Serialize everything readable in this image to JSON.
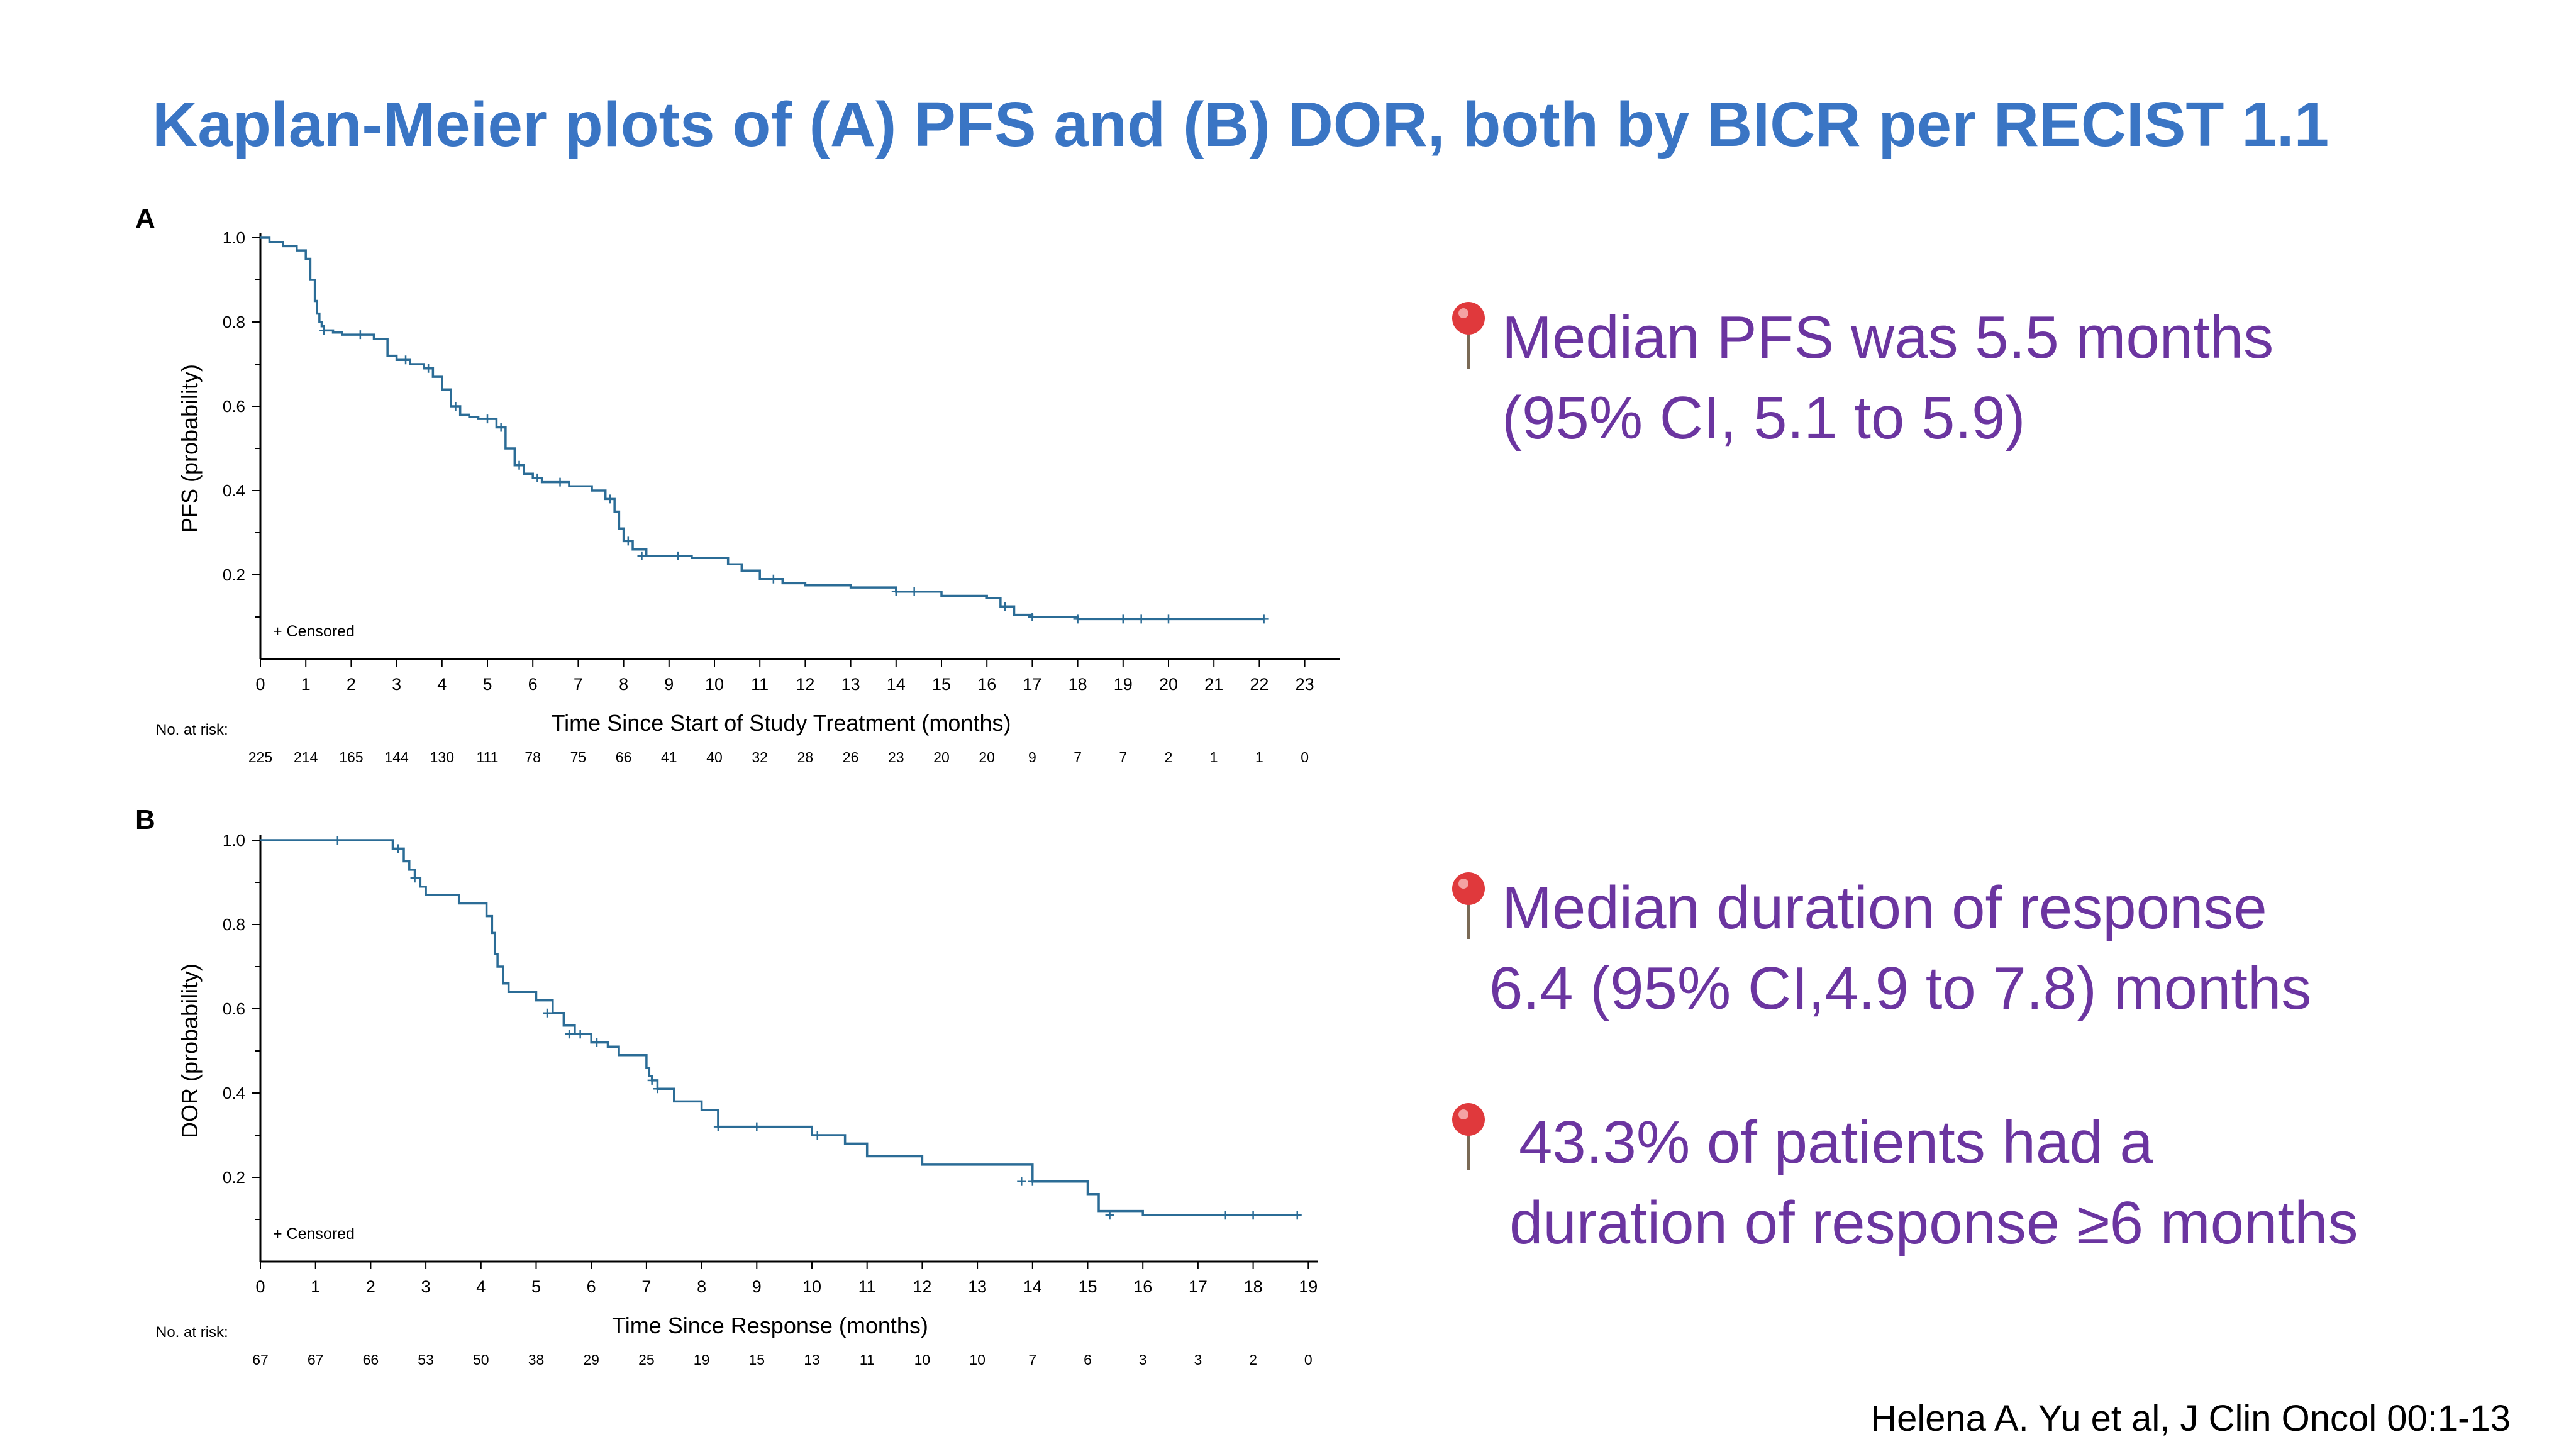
{
  "title": "Kaplan-Meier plots of (A) PFS and (B) DOR, both by BICR per RECIST 1.1",
  "colors": {
    "title": "#3A75C4",
    "bullet_text": "#6B35A0",
    "curve": "#2B6C96",
    "pin_head": "#E0393C"
  },
  "icons": {
    "bullet_marker": "pushpin-icon"
  },
  "chart_data": [
    {
      "type": "line",
      "subtype": "kaplan-meier",
      "panel": "A",
      "xlabel": "Time Since Start of Study Treatment (months)",
      "ylabel": "PFS (probability)",
      "xlim": [
        0,
        23
      ],
      "ylim": [
        0,
        1
      ],
      "x_ticks": [
        0,
        1,
        2,
        3,
        4,
        5,
        6,
        7,
        8,
        9,
        10,
        11,
        12,
        13,
        14,
        15,
        16,
        17,
        18,
        19,
        20,
        21,
        22,
        23
      ],
      "y_ticks": [
        0.2,
        0.4,
        0.6,
        0.8,
        1.0
      ],
      "y_tick_labels": [
        "0.2",
        "0.4",
        "0.6",
        "0.8",
        "1.0"
      ],
      "legend": "+ Censored",
      "risk_table_label": "No. at risk:",
      "number_at_risk": [
        "225",
        "214",
        "165",
        "144",
        "130",
        "111",
        "78",
        "75",
        "66",
        "41",
        "40",
        "32",
        "28",
        "26",
        "23",
        "20",
        "20",
        "9",
        "7",
        "7",
        "2",
        "1",
        "1",
        "0"
      ],
      "series": [
        {
          "x": [
            0,
            0.2,
            0.5,
            0.8,
            1.0,
            1.1,
            1.2,
            1.25,
            1.3,
            1.35,
            1.4,
            1.5,
            1.6,
            1.8,
            2.0,
            2.5,
            2.8,
            3.0,
            3.3,
            3.6,
            3.8,
            4.0,
            4.2,
            4.4,
            4.6,
            4.8,
            5.0,
            5.2,
            5.4,
            5.6,
            5.8,
            6.0,
            6.2,
            6.5,
            6.8,
            7.0,
            7.3,
            7.6,
            7.8,
            7.9,
            8.0,
            8.2,
            8.5,
            9.0,
            9.5,
            10.0,
            10.3,
            10.6,
            11.0,
            11.5,
            12.0,
            13.0,
            14.0,
            15.0,
            16.0,
            16.3,
            16.6,
            17.0,
            18.0,
            19.0,
            20.0,
            21.0,
            22.0,
            22.1
          ],
          "y": [
            1.0,
            0.99,
            0.98,
            0.97,
            0.95,
            0.9,
            0.85,
            0.82,
            0.8,
            0.79,
            0.78,
            0.78,
            0.775,
            0.77,
            0.77,
            0.76,
            0.72,
            0.71,
            0.7,
            0.69,
            0.67,
            0.64,
            0.6,
            0.58,
            0.575,
            0.57,
            0.57,
            0.55,
            0.5,
            0.46,
            0.44,
            0.43,
            0.42,
            0.42,
            0.41,
            0.41,
            0.4,
            0.38,
            0.35,
            0.31,
            0.28,
            0.26,
            0.245,
            0.245,
            0.24,
            0.24,
            0.225,
            0.21,
            0.19,
            0.18,
            0.175,
            0.17,
            0.16,
            0.15,
            0.145,
            0.125,
            0.105,
            0.1,
            0.095,
            0.095,
            0.095,
            0.095,
            0.095,
            0.095
          ],
          "censored_x": [
            1.4,
            2.2,
            3.2,
            3.7,
            4.3,
            5.0,
            5.3,
            5.7,
            6.1,
            6.6,
            7.7,
            8.1,
            8.4,
            9.2,
            11.3,
            14.0,
            14.4,
            16.4,
            17.0,
            18.0,
            19.0,
            19.4,
            20.0,
            22.1
          ],
          "censored_y": [
            0.78,
            0.77,
            0.71,
            0.69,
            0.6,
            0.57,
            0.55,
            0.46,
            0.43,
            0.42,
            0.38,
            0.28,
            0.245,
            0.245,
            0.19,
            0.16,
            0.16,
            0.125,
            0.1,
            0.095,
            0.095,
            0.095,
            0.095,
            0.095
          ]
        }
      ]
    },
    {
      "type": "line",
      "subtype": "kaplan-meier",
      "panel": "B",
      "xlabel": "Time Since Response (months)",
      "ylabel": "DOR (probability)",
      "xlim": [
        0,
        19
      ],
      "ylim": [
        0,
        1
      ],
      "x_ticks": [
        0,
        1,
        2,
        3,
        4,
        5,
        6,
        7,
        8,
        9,
        10,
        11,
        12,
        13,
        14,
        15,
        16,
        17,
        18,
        19
      ],
      "y_ticks": [
        0.2,
        0.4,
        0.6,
        0.8,
        1.0
      ],
      "y_tick_labels": [
        "0.2",
        "0.4",
        "0.6",
        "0.8",
        "1.0"
      ],
      "legend": "+ Censored",
      "risk_table_label": "No. at risk:",
      "number_at_risk": [
        "67",
        "67",
        "66",
        "53",
        "50",
        "38",
        "29",
        "25",
        "19",
        "15",
        "13",
        "11",
        "10",
        "10",
        "7",
        "6",
        "3",
        "3",
        "2",
        "0"
      ],
      "series": [
        {
          "x": [
            0,
            2.4,
            2.6,
            2.7,
            2.8,
            2.9,
            3.0,
            3.3,
            3.6,
            4.0,
            4.1,
            4.2,
            4.25,
            4.3,
            4.4,
            4.5,
            5.0,
            5.3,
            5.5,
            5.7,
            6.0,
            6.3,
            6.5,
            7.0,
            7.05,
            7.1,
            7.2,
            7.5,
            8.0,
            8.3,
            9.0,
            9.5,
            10.0,
            10.3,
            10.6,
            11.0,
            12.0,
            13.0,
            13.5,
            14.0,
            15.0,
            15.2,
            16.0,
            17.0,
            18.0,
            18.8
          ],
          "y": [
            1.0,
            0.98,
            0.95,
            0.93,
            0.91,
            0.89,
            0.87,
            0.87,
            0.85,
            0.85,
            0.82,
            0.78,
            0.73,
            0.7,
            0.66,
            0.64,
            0.62,
            0.59,
            0.56,
            0.54,
            0.52,
            0.51,
            0.49,
            0.46,
            0.44,
            0.43,
            0.41,
            0.38,
            0.36,
            0.32,
            0.32,
            0.32,
            0.3,
            0.3,
            0.28,
            0.25,
            0.23,
            0.23,
            0.23,
            0.19,
            0.16,
            0.12,
            0.11,
            0.11,
            0.11,
            0.11
          ],
          "censored_x": [
            1.4,
            2.5,
            2.8,
            5.2,
            5.6,
            5.8,
            6.1,
            7.1,
            7.2,
            8.3,
            9.0,
            10.1,
            13.8,
            14.0,
            15.4,
            17.5,
            18.0,
            18.8
          ],
          "censored_y": [
            1.0,
            0.98,
            0.91,
            0.59,
            0.54,
            0.54,
            0.52,
            0.43,
            0.41,
            0.32,
            0.32,
            0.3,
            0.19,
            0.19,
            0.11,
            0.11,
            0.11,
            0.11
          ]
        }
      ]
    }
  ],
  "bullets": [
    {
      "lines": [
        "Median PFS was 5.5 months",
        "(95% CI, 5.1 to 5.9)"
      ]
    },
    {
      "lines": [
        "Median duration of response",
        "6.4 (95% CI,4.9 to 7.8) months"
      ]
    },
    {
      "lines": [
        "43.3% of patients had a",
        "duration of response ≥6 months"
      ]
    }
  ],
  "citation": "Helena A. Yu et al, J Clin Oncol 00:1-13"
}
